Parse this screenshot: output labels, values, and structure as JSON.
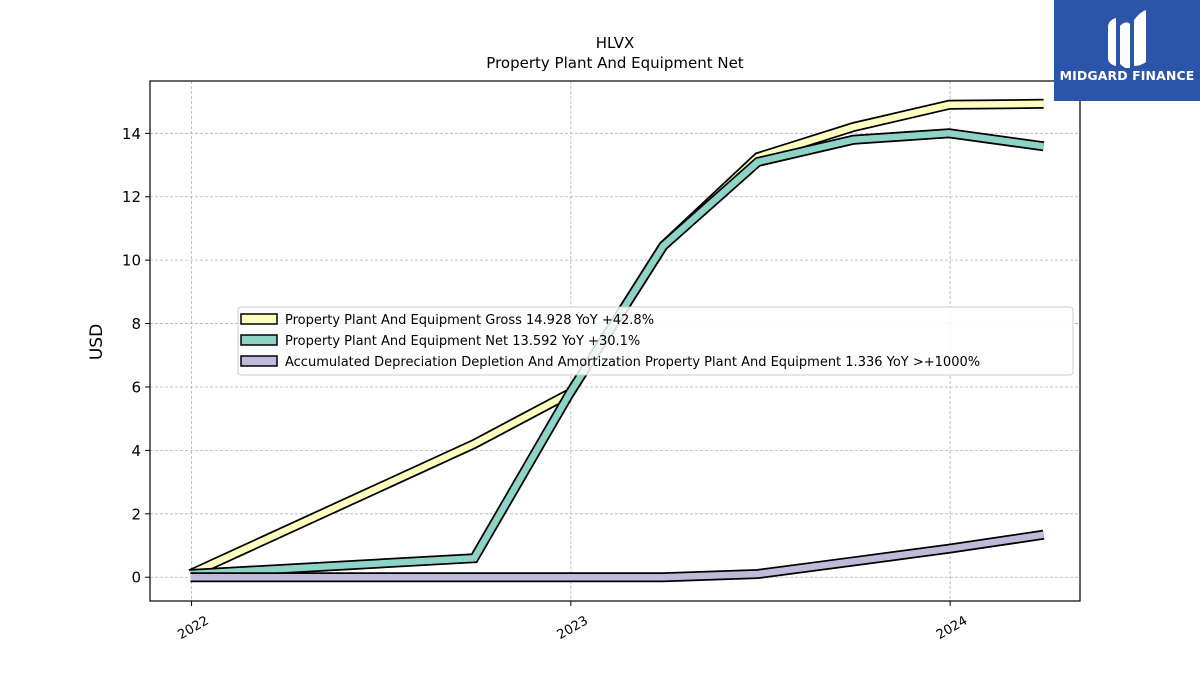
{
  "logo": {
    "text": "MIDGARD FINANCE",
    "color": "#2b55a8"
  },
  "chart_data": {
    "type": "line",
    "title": "HLVX",
    "subtitle": "Property Plant And Equipment Net",
    "ylabel": "USD",
    "xlabel": "",
    "x_dates": [
      "2021-12-31",
      "2022-09-30",
      "2022-12-31",
      "2023-03-31",
      "2023-06-30",
      "2023-09-30",
      "2023-12-31",
      "2024-03-31"
    ],
    "x_ticks": [
      {
        "label": "2022",
        "date": "2022-01-01"
      },
      {
        "label": "2023",
        "date": "2023-01-01"
      },
      {
        "label": "2024",
        "date": "2024-01-01"
      }
    ],
    "xlim": [
      "2021-11-22",
      "2024-05-05"
    ],
    "ylim": [
      -0.75,
      15.65
    ],
    "y_ticks": [
      0,
      2,
      4,
      6,
      8,
      10,
      12,
      14
    ],
    "grid": true,
    "legend_position": "center",
    "series": [
      {
        "name": "Property Plant And Equipment Gross",
        "legend_label": "Property Plant And Equipment Gross  14.928 YoY +42.8%",
        "color": "#ffffbf",
        "values": [
          0.1,
          4.2,
          5.8,
          10.45,
          13.25,
          14.2,
          14.9,
          14.93
        ]
      },
      {
        "name": "Property Plant And Equipment Net",
        "legend_label": "Property Plant And Equipment Net  13.592 YoY +30.1%",
        "color": "#8dd3c7",
        "values": [
          0.1,
          0.6,
          5.8,
          10.45,
          13.1,
          13.8,
          14.0,
          13.59
        ]
      },
      {
        "name": "Accumulated Depreciation Depletion And Amortization Property Plant And Equipment",
        "legend_label": "Accumulated Depreciation Depletion And Amortization Property Plant And Equipment  1.336 YoY >+1000%",
        "color": "#bebada",
        "values": [
          0.0,
          0.0,
          0.0,
          0.0,
          0.1,
          0.5,
          0.9,
          1.34
        ]
      }
    ]
  }
}
